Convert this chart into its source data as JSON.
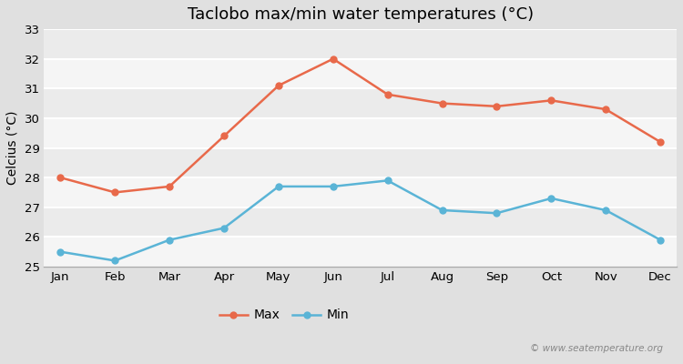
{
  "title": "Taclobo max/min water temperatures (°C)",
  "ylabel": "Celcius (°C)",
  "months": [
    "Jan",
    "Feb",
    "Mar",
    "Apr",
    "May",
    "Jun",
    "Jul",
    "Aug",
    "Sep",
    "Oct",
    "Nov",
    "Dec"
  ],
  "max_temps": [
    28.0,
    27.5,
    27.7,
    29.4,
    31.1,
    32.0,
    30.8,
    30.5,
    30.4,
    30.6,
    30.3,
    29.2
  ],
  "min_temps": [
    25.5,
    25.2,
    25.9,
    26.3,
    27.7,
    27.7,
    27.9,
    26.9,
    26.8,
    27.3,
    26.9,
    25.9
  ],
  "max_color": "#e8694a",
  "min_color": "#5ab4d6",
  "fig_bg_color": "#e0e0e0",
  "plot_bg_color": "#ebebeb",
  "stripe_color": "#e8e8e8",
  "ylim": [
    25,
    33
  ],
  "yticks": [
    25,
    26,
    27,
    28,
    29,
    30,
    31,
    32,
    33
  ],
  "legend_labels": [
    "Max",
    "Min"
  ],
  "watermark": "© www.seatemperature.org",
  "marker": "o",
  "markersize": 5,
  "linewidth": 1.8,
  "title_fontsize": 13,
  "label_fontsize": 10,
  "tick_fontsize": 9.5,
  "legend_fontsize": 10
}
